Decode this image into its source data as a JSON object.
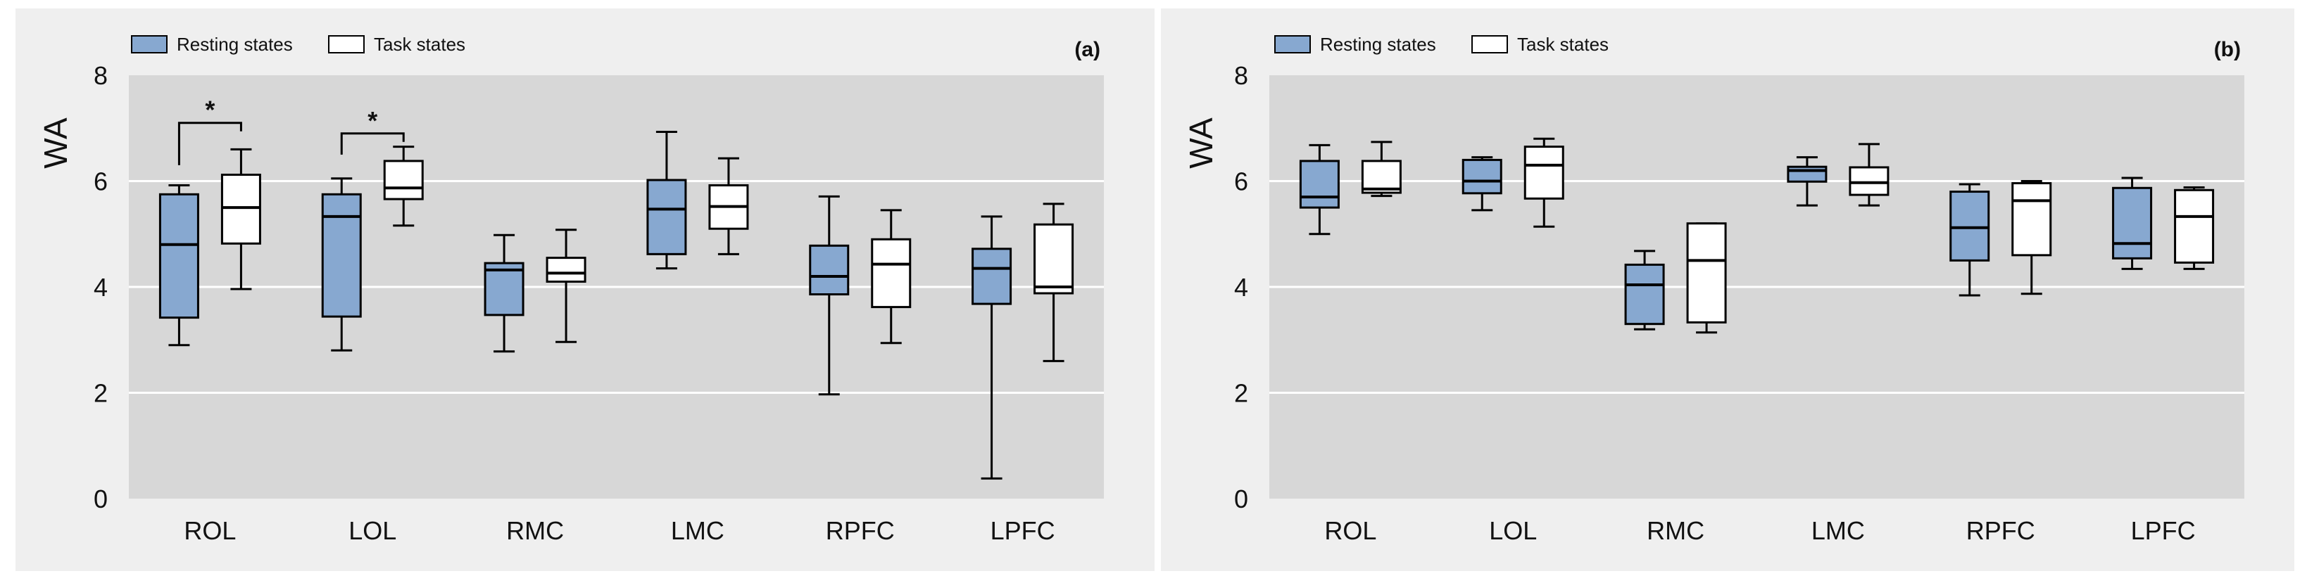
{
  "colors": {
    "panel_bg": "#efefef",
    "plot_bg": "#d7d7d7",
    "gridline": "#ffffff",
    "resting_fill": "#87a8d0",
    "task_fill": "#ffffff",
    "stroke": "#000000"
  },
  "chart_data": [
    {
      "type": "box",
      "panel_label": "(a)",
      "ylabel": "WA",
      "xlabel": "",
      "ylim": [
        0,
        8
      ],
      "yticks": [
        0,
        2,
        4,
        6,
        8
      ],
      "grid": true,
      "legend_position": "top-left",
      "categories": [
        "ROL",
        "LOL",
        "RMC",
        "LMC",
        "RPFC",
        "LPFC"
      ],
      "series": [
        {
          "name": "Resting states",
          "boxes": [
            {
              "min": 2.9,
              "q1": 3.42,
              "median": 4.8,
              "q3": 5.75,
              "max": 5.92
            },
            {
              "min": 2.8,
              "q1": 3.44,
              "median": 5.33,
              "q3": 5.75,
              "max": 6.05
            },
            {
              "min": 2.78,
              "q1": 3.47,
              "median": 4.32,
              "q3": 4.45,
              "max": 4.98
            },
            {
              "min": 4.35,
              "q1": 4.62,
              "median": 5.47,
              "q3": 6.02,
              "max": 6.93
            },
            {
              "min": 1.97,
              "q1": 3.86,
              "median": 4.2,
              "q3": 4.78,
              "max": 5.71
            },
            {
              "min": 0.38,
              "q1": 3.68,
              "median": 4.35,
              "q3": 4.72,
              "max": 5.33
            }
          ]
        },
        {
          "name": "Task states",
          "boxes": [
            {
              "min": 3.96,
              "q1": 4.82,
              "median": 5.5,
              "q3": 6.12,
              "max": 6.6
            },
            {
              "min": 5.16,
              "q1": 5.66,
              "median": 5.87,
              "q3": 6.38,
              "max": 6.65
            },
            {
              "min": 2.96,
              "q1": 4.1,
              "median": 4.26,
              "q3": 4.55,
              "max": 5.08
            },
            {
              "min": 4.62,
              "q1": 5.1,
              "median": 5.52,
              "q3": 5.92,
              "max": 6.43
            },
            {
              "min": 2.94,
              "q1": 3.62,
              "median": 4.43,
              "q3": 4.9,
              "max": 5.45
            },
            {
              "min": 2.6,
              "q1": 3.88,
              "median": 4.0,
              "q3": 5.18,
              "max": 5.57
            }
          ]
        }
      ],
      "annotations": [
        {
          "category": "ROL",
          "text": "*",
          "bracket_y": 7.1,
          "tick_y": 6.3
        },
        {
          "category": "LOL",
          "text": "*",
          "bracket_y": 6.9,
          "tick_y": 6.5
        }
      ]
    },
    {
      "type": "box",
      "panel_label": "(b)",
      "ylabel": "WA",
      "xlabel": "",
      "ylim": [
        0,
        8
      ],
      "yticks": [
        0,
        2,
        4,
        6,
        8
      ],
      "grid": true,
      "legend_position": "top-left",
      "categories": [
        "ROL",
        "LOL",
        "RMC",
        "LMC",
        "RPFC",
        "LPFC"
      ],
      "series": [
        {
          "name": "Resting states",
          "boxes": [
            {
              "min": 5.0,
              "q1": 5.5,
              "median": 5.7,
              "q3": 6.38,
              "max": 6.68
            },
            {
              "min": 5.45,
              "q1": 5.77,
              "median": 6.0,
              "q3": 6.4,
              "max": 6.45
            },
            {
              "min": 3.2,
              "q1": 3.3,
              "median": 4.04,
              "q3": 4.42,
              "max": 4.68
            },
            {
              "min": 5.54,
              "q1": 5.99,
              "median": 6.2,
              "q3": 6.27,
              "max": 6.45
            },
            {
              "min": 3.84,
              "q1": 4.5,
              "median": 5.12,
              "q3": 5.8,
              "max": 5.94
            },
            {
              "min": 4.34,
              "q1": 4.54,
              "median": 4.82,
              "q3": 5.87,
              "max": 6.06
            }
          ]
        },
        {
          "name": "Task states",
          "boxes": [
            {
              "min": 5.72,
              "q1": 5.78,
              "median": 5.85,
              "q3": 6.38,
              "max": 6.74
            },
            {
              "min": 5.14,
              "q1": 5.67,
              "median": 6.3,
              "q3": 6.65,
              "max": 6.8
            },
            {
              "min": 3.14,
              "q1": 3.33,
              "median": 4.5,
              "q3": 5.2,
              "max": 5.2
            },
            {
              "min": 5.54,
              "q1": 5.74,
              "median": 5.97,
              "q3": 6.26,
              "max": 6.7
            },
            {
              "min": 3.87,
              "q1": 4.6,
              "median": 5.63,
              "q3": 5.96,
              "max": 6.0
            },
            {
              "min": 4.34,
              "q1": 4.46,
              "median": 5.33,
              "q3": 5.83,
              "max": 5.88
            }
          ]
        }
      ],
      "annotations": []
    }
  ]
}
